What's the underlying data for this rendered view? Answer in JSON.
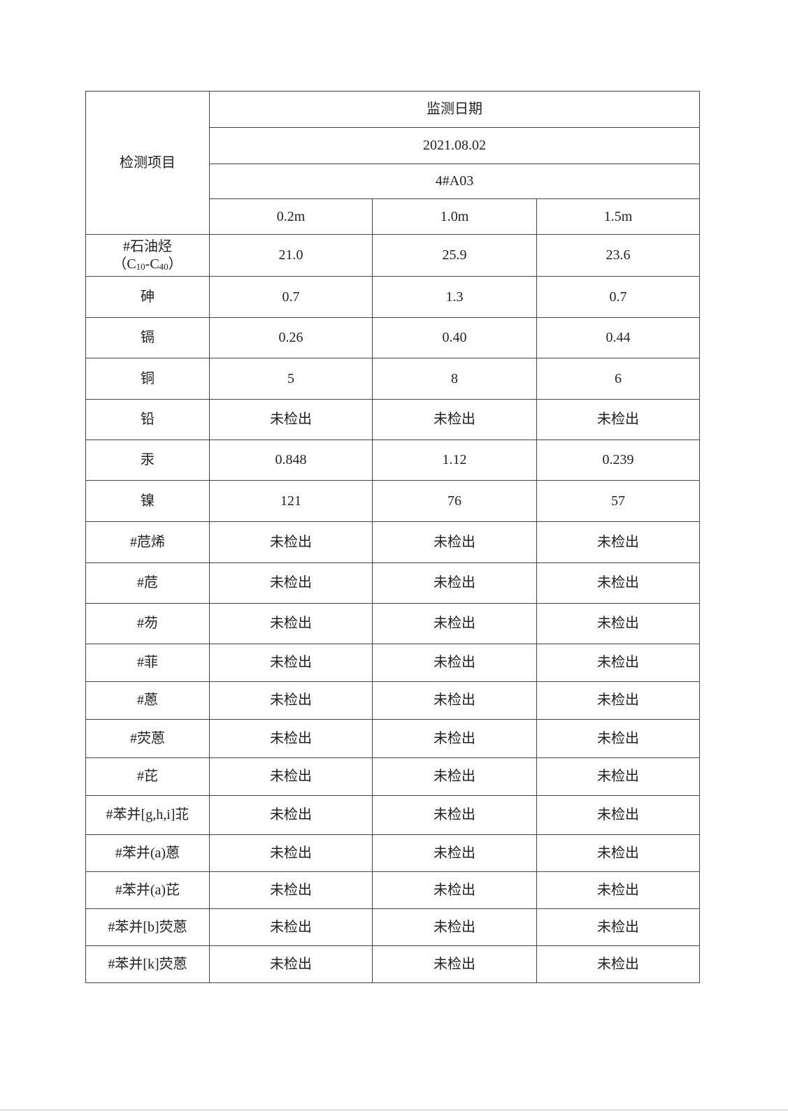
{
  "table": {
    "row_header": "检测项目",
    "group_header": "监测日期",
    "date": "2021.08.02",
    "site": "4#A03",
    "depths": [
      "0.2m",
      "1.0m",
      "1.5m"
    ],
    "first_item": {
      "name": "#石油烃",
      "formula_prefix": "（C",
      "formula_sub1": "10",
      "formula_mid": "-C",
      "formula_sub2": "40",
      "formula_suffix": "）",
      "values": [
        "21.0",
        "25.9",
        "23.6"
      ]
    },
    "rows": [
      {
        "name": "砷",
        "values": [
          "0.7",
          "1.3",
          "0.7"
        ]
      },
      {
        "name": "镉",
        "values": [
          "0.26",
          "0.40",
          "0.44"
        ]
      },
      {
        "name": "铜",
        "values": [
          "5",
          "8",
          "6"
        ]
      },
      {
        "name": "铅",
        "values": [
          "未检出",
          "未检出",
          "未检出"
        ]
      },
      {
        "name": "汞",
        "values": [
          "0.848",
          "1.12",
          "0.239"
        ]
      },
      {
        "name": "镍",
        "values": [
          "121",
          "76",
          "57"
        ]
      },
      {
        "name": "#苊烯",
        "values": [
          "未检出",
          "未检出",
          "未检出"
        ]
      },
      {
        "name": "#苊",
        "values": [
          "未检出",
          "未检出",
          "未检出"
        ]
      },
      {
        "name": "#芴",
        "values": [
          "未检出",
          "未检出",
          "未检出"
        ]
      },
      {
        "name": "#菲",
        "values": [
          "未检出",
          "未检出",
          "未检出"
        ]
      },
      {
        "name": "#蒽",
        "values": [
          "未检出",
          "未检出",
          "未检出"
        ]
      },
      {
        "name": "#荧蒽",
        "values": [
          "未检出",
          "未检出",
          "未检出"
        ]
      },
      {
        "name": "#芘",
        "values": [
          "未检出",
          "未检出",
          "未检出"
        ]
      },
      {
        "name": "#苯并[g,h,i]苝",
        "values": [
          "未检出",
          "未检出",
          "未检出"
        ]
      },
      {
        "name": "#苯并(a)蒽",
        "values": [
          "未检出",
          "未检出",
          "未检出"
        ]
      },
      {
        "name": "#苯并(a)芘",
        "values": [
          "未检出",
          "未检出",
          "未检出"
        ]
      },
      {
        "name": "#苯并[b]荧蒽",
        "values": [
          "未检出",
          "未检出",
          "未检出"
        ]
      },
      {
        "name": "#苯并[k]荧蒽",
        "values": [
          "未检出",
          "未检出",
          "未检出"
        ]
      }
    ]
  }
}
